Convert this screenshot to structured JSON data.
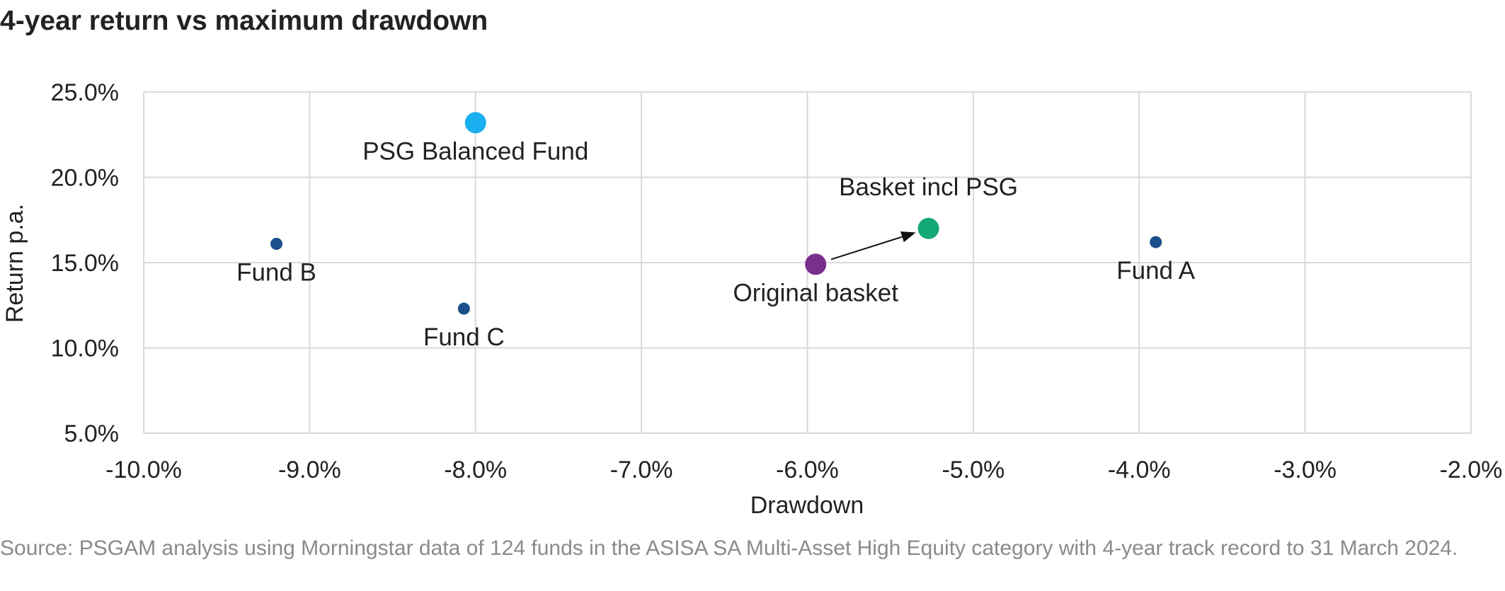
{
  "page": {
    "title": "4-year return vs maximum drawdown",
    "source": "Source: PSGAM analysis using Morningstar data of 124 funds in the ASISA SA Multi-Asset High Equity category with 4-year track record to 31 March 2024."
  },
  "chart_data": {
    "type": "scatter",
    "title": "4-year return vs maximum drawdown",
    "xlabel": "Drawdown",
    "ylabel": "Return p.a.",
    "xlim": [
      -10.0,
      -2.0
    ],
    "ylim": [
      5.0,
      25.0
    ],
    "x_ticks": [
      -10.0,
      -9.0,
      -8.0,
      -7.0,
      -6.0,
      -5.0,
      -4.0,
      -3.0,
      -2.0
    ],
    "x_tick_labels": [
      "-10.0%",
      "-9.0%",
      "-8.0%",
      "-7.0%",
      "-6.0%",
      "-5.0%",
      "-4.0%",
      "-3.0%",
      "-2.0%"
    ],
    "y_ticks": [
      5.0,
      10.0,
      15.0,
      20.0,
      25.0
    ],
    "y_tick_labels": [
      "5.0%",
      "10.0%",
      "15.0%",
      "20.0%",
      "25.0%"
    ],
    "grid": true,
    "legend": "none",
    "points": [
      {
        "label": "PSG Balanced Fund",
        "x": -8.0,
        "y": 23.2,
        "color": "#1ab0f0",
        "size": "large",
        "label_position": "below"
      },
      {
        "label": "Fund B",
        "x": -9.2,
        "y": 16.1,
        "color": "#1a4f8a",
        "size": "small",
        "label_position": "below"
      },
      {
        "label": "Fund C",
        "x": -8.07,
        "y": 12.3,
        "color": "#1a4f8a",
        "size": "small",
        "label_position": "below"
      },
      {
        "label": "Original basket",
        "x": -5.95,
        "y": 14.9,
        "color": "#7a2e8e",
        "size": "large",
        "label_position": "below"
      },
      {
        "label": "Basket incl PSG",
        "x": -5.27,
        "y": 17.0,
        "color": "#14a874",
        "size": "large",
        "label_position": "above"
      },
      {
        "label": "Fund A",
        "x": -3.9,
        "y": 16.2,
        "color": "#1a4f8a",
        "size": "small",
        "label_position": "below"
      }
    ],
    "annotations": [
      {
        "type": "arrow",
        "from": "Original basket",
        "to": "Basket incl PSG",
        "color": "#111111"
      }
    ]
  }
}
